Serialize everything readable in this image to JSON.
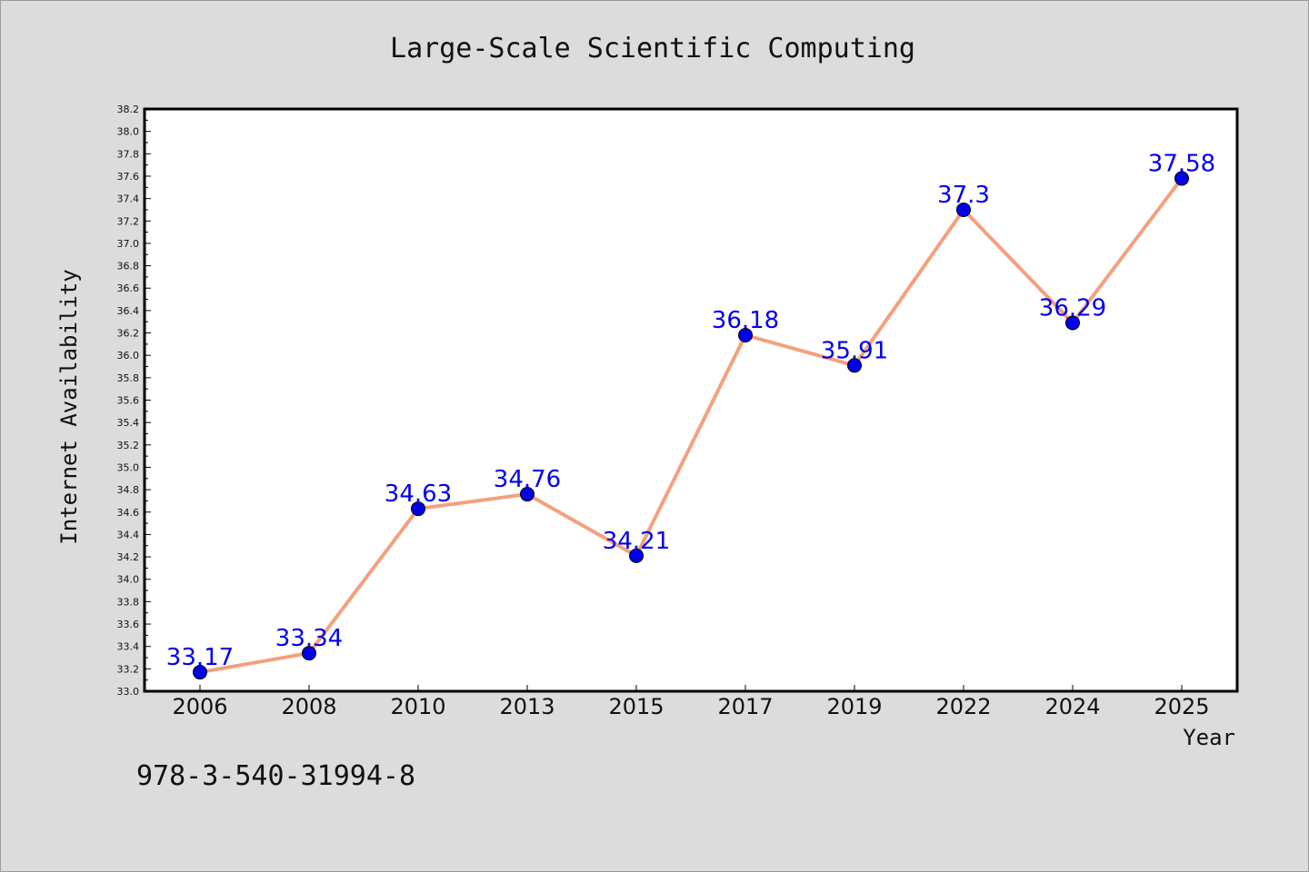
{
  "chart_data": {
    "type": "line",
    "title": "Large-Scale Scientific Computing",
    "xlabel": "Year",
    "ylabel": "Internet Availability",
    "categories": [
      "2006",
      "2008",
      "2010",
      "2013",
      "2015",
      "2017",
      "2019",
      "2022",
      "2024",
      "2025"
    ],
    "series": [
      {
        "values": [
          33.17,
          33.34,
          34.63,
          34.76,
          34.21,
          36.18,
          35.91,
          37.3,
          36.29,
          37.58
        ],
        "labels": [
          "33.17",
          "33.34",
          "34.63",
          "34.76",
          "34.21",
          "36.18",
          "35.91",
          "37.3",
          "36.29",
          "37.58"
        ]
      }
    ],
    "ylim": [
      33.0,
      38.2
    ],
    "yticks": [
      "33.0",
      "33.2",
      "33.4",
      "33.6",
      "33.8",
      "34.0",
      "34.2",
      "34.4",
      "34.6",
      "34.8",
      "35.0",
      "35.2",
      "35.4",
      "35.6",
      "35.8",
      "36.0",
      "36.2",
      "36.4",
      "36.6",
      "36.8",
      "37.0",
      "37.2",
      "37.4",
      "37.6",
      "37.8",
      "38.0",
      "38.2"
    ],
    "grid": false,
    "line_color": "#f4a07e",
    "marker_color": "#0000ee",
    "label_color": "#0000ee"
  },
  "footnote": "978-3-540-31994-8"
}
